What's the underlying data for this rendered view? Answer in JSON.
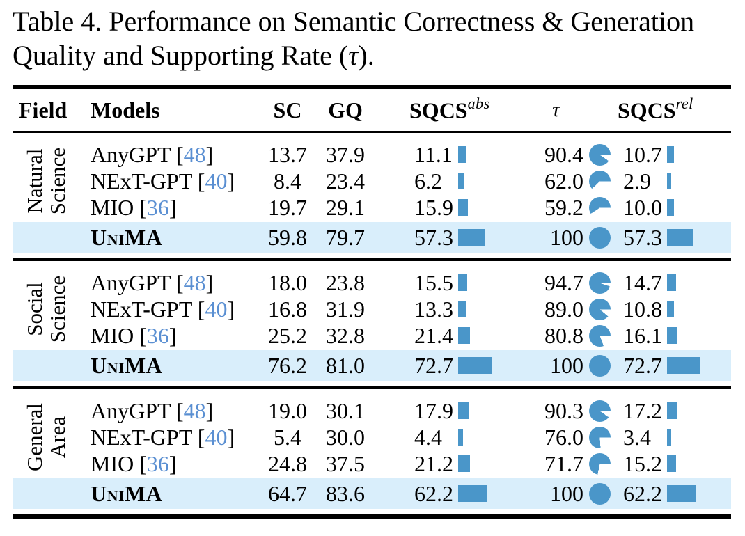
{
  "caption": {
    "line1": "Table 4. Performance on Semantic Correctness & Generation",
    "line2_pre": "Quality and Supporting Rate (",
    "tau_symbol": "τ",
    "line2_post": ")."
  },
  "header": {
    "field": "Field",
    "models": "Models",
    "sc": "SC",
    "gq": "GQ",
    "sqcs": "SQCS",
    "sup_abs": "abs",
    "tau": "τ",
    "sup_rel": "rel"
  },
  "formatting": {
    "cite_prefix": " [",
    "cite_suffix": "]"
  },
  "colors": {
    "accent_blue": "#4a96c9",
    "citation_blue": "#5a8fd2",
    "highlight_row": "#d9eefb",
    "rule_black": "#000000"
  },
  "groups": [
    {
      "field_line1": "Natural",
      "field_line2": "Science",
      "rows": [
        {
          "model": "AnyGPT",
          "cite": "48",
          "sc": "13.7",
          "gq": "37.9",
          "sqcs_abs": "11.1",
          "tau": "90.4",
          "sqcs_rel": "10.7",
          "highlight": false
        },
        {
          "model": "NExT-GPT",
          "cite": "40",
          "sc": "8.4",
          "gq": "23.4",
          "sqcs_abs": "6.2",
          "tau": "62.0",
          "sqcs_rel": "2.9",
          "highlight": false
        },
        {
          "model": "MIO",
          "cite": "36",
          "sc": "19.7",
          "gq": "29.1",
          "sqcs_abs": "15.9",
          "tau": "59.2",
          "sqcs_rel": "10.0",
          "highlight": false
        },
        {
          "model": "UniMA",
          "sc": "59.8",
          "gq": "79.7",
          "sqcs_abs": "57.3",
          "tau": "100",
          "sqcs_rel": "57.3",
          "highlight": true
        }
      ]
    },
    {
      "field_line1": "Social",
      "field_line2": "Science",
      "rows": [
        {
          "model": "AnyGPT",
          "cite": "48",
          "sc": "18.0",
          "gq": "23.8",
          "sqcs_abs": "15.5",
          "tau": "94.7",
          "sqcs_rel": "14.7",
          "highlight": false
        },
        {
          "model": "NExT-GPT",
          "cite": "40",
          "sc": "16.8",
          "gq": "31.9",
          "sqcs_abs": "13.3",
          "tau": "89.0",
          "sqcs_rel": "10.8",
          "highlight": false
        },
        {
          "model": "MIO",
          "cite": "36",
          "sc": "25.2",
          "gq": "32.8",
          "sqcs_abs": "21.4",
          "tau": "80.8",
          "sqcs_rel": "16.1",
          "highlight": false
        },
        {
          "model": "UniMA",
          "sc": "76.2",
          "gq": "81.0",
          "sqcs_abs": "72.7",
          "tau": "100",
          "sqcs_rel": "72.7",
          "highlight": true
        }
      ]
    },
    {
      "field_line1": "General",
      "field_line2": "Area",
      "rows": [
        {
          "model": "AnyGPT",
          "cite": "48",
          "sc": "19.0",
          "gq": "30.1",
          "sqcs_abs": "17.9",
          "tau": "90.3",
          "sqcs_rel": "17.2",
          "highlight": false
        },
        {
          "model": "NExT-GPT",
          "cite": "40",
          "sc": "5.4",
          "gq": "30.0",
          "sqcs_abs": "4.4",
          "tau": "76.0",
          "sqcs_rel": "3.4",
          "highlight": false
        },
        {
          "model": "MIO",
          "cite": "36",
          "sc": "24.8",
          "gq": "37.5",
          "sqcs_abs": "21.2",
          "tau": "71.7",
          "sqcs_rel": "15.2",
          "highlight": false
        },
        {
          "model": "UniMA",
          "sc": "64.7",
          "gq": "83.6",
          "sqcs_abs": "62.2",
          "tau": "100",
          "sqcs_rel": "62.2",
          "highlight": true
        }
      ]
    }
  ]
}
